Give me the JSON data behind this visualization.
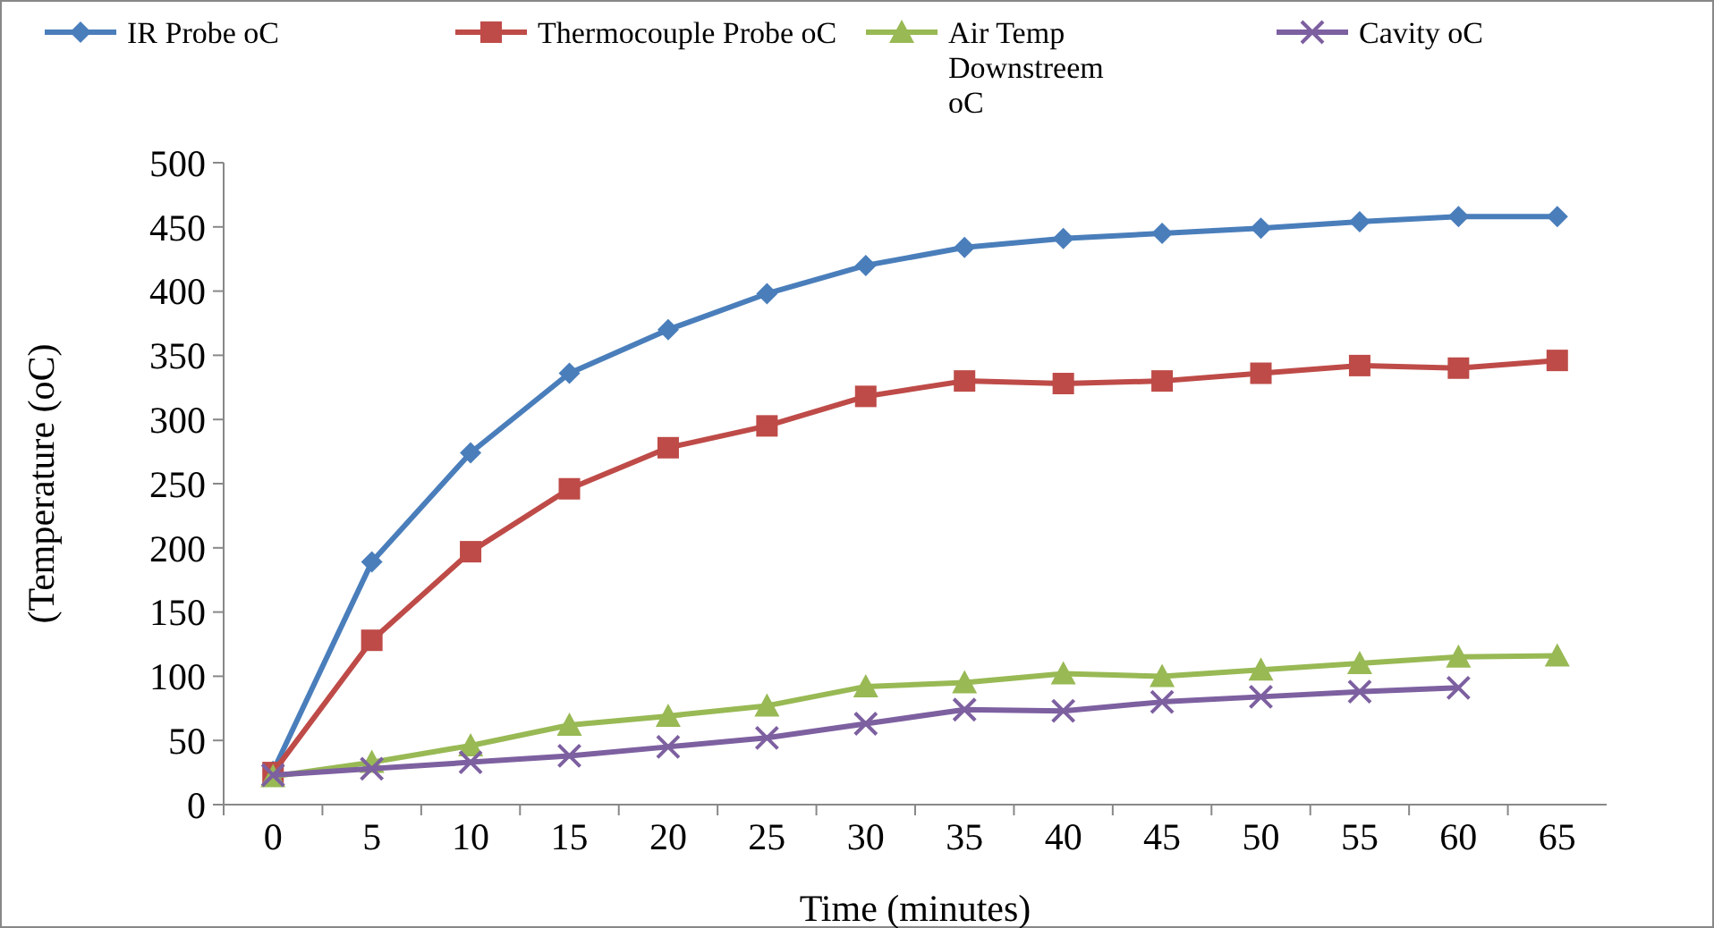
{
  "chart_data": {
    "type": "line",
    "xlabel": "Time (minutes)",
    "ylabel": "(Temperature (oC)",
    "categories": [
      "0",
      "5",
      "10",
      "15",
      "20",
      "25",
      "30",
      "35",
      "40",
      "45",
      "50",
      "55",
      "60",
      "65"
    ],
    "ylim": [
      0,
      500
    ],
    "yticks": [
      0,
      50,
      100,
      150,
      200,
      250,
      300,
      350,
      400,
      450,
      500
    ],
    "grid": false,
    "legend": "top",
    "series": [
      {
        "name": "IR Probe oC",
        "color": "#4a7ebb",
        "marker": "diamond",
        "values": [
          26,
          189,
          274,
          336,
          370,
          398,
          420,
          434,
          441,
          445,
          449,
          454,
          458,
          458
        ]
      },
      {
        "name": "Thermocouple Probe oC",
        "color": "#be4b48",
        "marker": "square",
        "values": [
          25,
          128,
          197,
          246,
          278,
          295,
          318,
          330,
          328,
          330,
          336,
          342,
          340,
          346
        ]
      },
      {
        "name": "Air Temp Downstreem oC",
        "color": "#98b954",
        "marker": "triangle",
        "values": [
          22,
          33,
          46,
          62,
          69,
          77,
          92,
          95,
          102,
          100,
          105,
          110,
          115,
          116
        ]
      },
      {
        "name": "Cavity oC",
        "color": "#7d60a0",
        "marker": "cross",
        "values": [
          23,
          28,
          33,
          38,
          45,
          52,
          63,
          74,
          73,
          80,
          84,
          88,
          91,
          null
        ]
      }
    ]
  }
}
